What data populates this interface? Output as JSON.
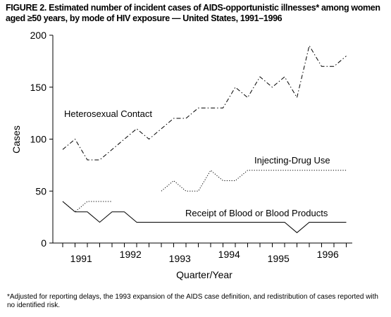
{
  "figure": {
    "title": "FIGURE 2. Estimated number of incident cases of AIDS-opportunistic illnesses* among women aged ≥50 years, by mode of HIV exposure — United States, 1991–1996",
    "footnote": "*Adjusted for reporting delays, the 1993 expansion of the AIDS case definition, and redistribution of cases reported with no identified risk."
  },
  "chart_data": {
    "type": "line",
    "title": "FIGURE 2. Estimated number of incident cases of AIDS-opportunistic illnesses* among women aged ≥50 years, by mode of HIV exposure — United States, 1991–1996",
    "xlabel": "Quarter/Year",
    "ylabel": "Cases",
    "ylim": [
      0,
      200
    ],
    "yticks": [
      0,
      50,
      100,
      150,
      200
    ],
    "categories": [
      "1991 Q1",
      "1991 Q2",
      "1991 Q3",
      "1991 Q4",
      "1992 Q1",
      "1992 Q2",
      "1992 Q3",
      "1992 Q4",
      "1993 Q1",
      "1993 Q2",
      "1993 Q3",
      "1993 Q4",
      "1994 Q1",
      "1994 Q2",
      "1994 Q3",
      "1994 Q4",
      "1995 Q1",
      "1995 Q2",
      "1995 Q3",
      "1995 Q4",
      "1996 Q1",
      "1996 Q2",
      "1996 Q3",
      "1996 Q4"
    ],
    "year_labels": [
      "1991",
      "1992",
      "1993",
      "1994",
      "1995",
      "1996"
    ],
    "grid": false,
    "legend": "inline",
    "series": [
      {
        "name": "Heterosexual Contact",
        "style": "dash-dot",
        "values": [
          90,
          100,
          80,
          80,
          90,
          100,
          110,
          100,
          110,
          120,
          120,
          130,
          130,
          130,
          150,
          140,
          160,
          150,
          160,
          140,
          190,
          170,
          170,
          180
        ]
      },
      {
        "name": "Injecting-Drug Use",
        "style": "dotted",
        "values": [
          40,
          30,
          40,
          40,
          40,
          null,
          null,
          null,
          50,
          60,
          50,
          50,
          70,
          60,
          60,
          70,
          70,
          70,
          70,
          70,
          70,
          70,
          70,
          70
        ]
      },
      {
        "name": "Receipt of Blood or Blood Products",
        "style": "solid",
        "values": [
          40,
          30,
          30,
          20,
          30,
          30,
          20,
          20,
          20,
          20,
          20,
          20,
          20,
          20,
          20,
          20,
          20,
          20,
          20,
          10,
          20,
          20,
          20,
          20
        ]
      }
    ]
  }
}
